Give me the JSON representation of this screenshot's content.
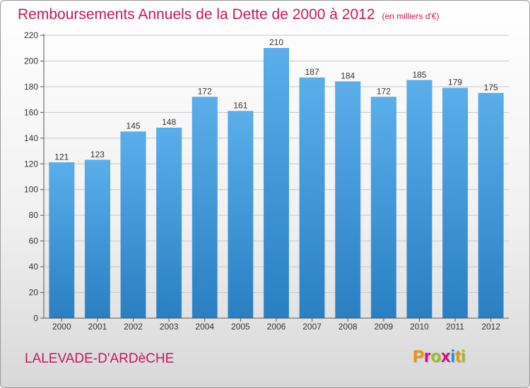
{
  "header": {
    "title": "Remboursements Annuels de la Dette de 2000 à 2012",
    "unit": "(en milliers d'€)"
  },
  "footer": {
    "commune": "LALEVADE-D'ARDèCHE",
    "logo_text": "Proxiti",
    "logo_colors": [
      "#f39200",
      "#e4007f",
      "#95c11f",
      "#e4007f",
      "#009fe3",
      "#f39200",
      "#95c11f"
    ]
  },
  "chart_data": {
    "type": "bar",
    "title": "Remboursements Annuels de la Dette de 2000 à 2012",
    "categories": [
      "2000",
      "2001",
      "2002",
      "2003",
      "2004",
      "2005",
      "2006",
      "2007",
      "2008",
      "2009",
      "2010",
      "2011",
      "2012"
    ],
    "values": [
      121,
      123,
      145,
      148,
      172,
      161,
      210,
      187,
      184,
      172,
      185,
      179,
      175
    ],
    "ylim": [
      0,
      220
    ],
    "yticks": [
      0,
      20,
      40,
      60,
      80,
      100,
      120,
      140,
      160,
      180,
      200,
      220
    ],
    "grid": true,
    "bar_color_top": "#5aaeea",
    "bar_color_bottom": "#2a7fc2"
  }
}
